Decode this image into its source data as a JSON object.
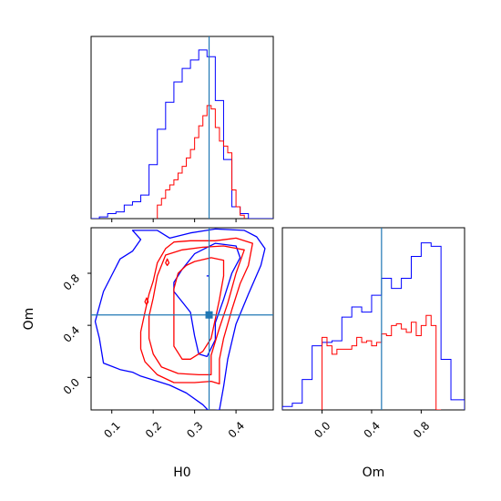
{
  "chart_data": {
    "type": "corner",
    "parameters": [
      "H0",
      "Om"
    ],
    "truth": {
      "H0": 0.335,
      "Om": 0.48
    },
    "colors": {
      "blue": "#0000ff",
      "red": "#ff0000",
      "truth": "#1f77b4",
      "axis": "#000000"
    },
    "panels": [
      {
        "id": "hist-H0",
        "type": "step-histogram",
        "x_param": "H0",
        "xlim": [
          0.05,
          0.49
        ],
        "ylim": [
          0,
          1.08
        ],
        "y_ticks_shown": false,
        "x_tick_values": [
          0.1,
          0.2,
          0.3,
          0.4
        ],
        "x_tick_labels_shown": false,
        "series": [
          {
            "color": "blue",
            "bin_edges": [
              0.05,
              0.07,
              0.09,
              0.11,
              0.13,
              0.15,
              0.17,
              0.19,
              0.21,
              0.23,
              0.25,
              0.27,
              0.29,
              0.31,
              0.33,
              0.35,
              0.37,
              0.39,
              0.41,
              0.43,
              0.45,
              0.47,
              0.49
            ],
            "heights": [
              0,
              0.01,
              0.03,
              0.04,
              0.08,
              0.1,
              0.14,
              0.32,
              0.53,
              0.69,
              0.81,
              0.89,
              0.94,
              1.0,
              0.96,
              0.7,
              0.35,
              0.07,
              0.03,
              0.0,
              0,
              0
            ]
          },
          {
            "color": "red",
            "bin_edges": [
              0.21,
              0.22,
              0.23,
              0.24,
              0.25,
              0.26,
              0.27,
              0.28,
              0.29,
              0.3,
              0.31,
              0.32,
              0.33,
              0.34,
              0.35,
              0.36,
              0.37,
              0.38,
              0.39,
              0.4,
              0.41,
              0.42
            ],
            "heights": [
              0.08,
              0.12,
              0.17,
              0.2,
              0.23,
              0.27,
              0.31,
              0.36,
              0.41,
              0.48,
              0.55,
              0.61,
              0.67,
              0.65,
              0.54,
              0.46,
              0.43,
              0.39,
              0.17,
              0.07,
              0.02
            ]
          }
        ]
      },
      {
        "id": "contour-H0-Om",
        "type": "contour",
        "x_param": "H0",
        "y_param": "Om",
        "xlim": [
          0.05,
          0.49
        ],
        "ylim": [
          -0.25,
          1.15
        ],
        "x_tick_values": [
          0.1,
          0.2,
          0.3,
          0.4
        ],
        "x_tick_labels": [
          "0.1",
          "0.2",
          "0.3",
          "0.4"
        ],
        "y_tick_values": [
          0.0,
          0.4,
          0.8
        ],
        "y_tick_labels": [
          "0.0",
          "0.4",
          "0.8"
        ],
        "xlabel": "H0",
        "ylabel": "Om",
        "series": [
          {
            "color": "blue",
            "contours": [
              [
                [
                  0.15,
                  1.13
                ],
                [
                  0.17,
                  1.06
                ],
                [
                  0.15,
                  0.97
                ],
                [
                  0.12,
                  0.91
                ],
                [
                  0.08,
                  0.66
                ],
                [
                  0.06,
                  0.43
                ],
                [
                  0.07,
                  0.3
                ],
                [
                  0.08,
                  0.11
                ],
                [
                  0.12,
                  0.06
                ],
                [
                  0.15,
                  0.04
                ],
                [
                  0.17,
                  0.01
                ],
                [
                  0.2,
                  -0.02
                ],
                [
                  0.24,
                  -0.06
                ],
                [
                  0.28,
                  -0.12
                ],
                [
                  0.32,
                  -0.21
                ],
                [
                  0.335,
                  -0.26
                ],
                [
                  0.36,
                  -0.25
                ],
                [
                  0.37,
                  -0.07
                ],
                [
                  0.38,
                  0.14
                ],
                [
                  0.4,
                  0.41
                ],
                [
                  0.43,
                  0.64
                ],
                [
                  0.46,
                  0.86
                ],
                [
                  0.47,
                  0.99
                ],
                [
                  0.45,
                  1.08
                ],
                [
                  0.42,
                  1.13
                ],
                [
                  0.35,
                  1.14
                ],
                [
                  0.29,
                  1.11
                ],
                [
                  0.24,
                  1.07
                ],
                [
                  0.21,
                  1.13
                ]
              ],
              [
                [
                  0.27,
                  0.83
                ],
                [
                  0.3,
                  0.95
                ],
                [
                  0.35,
                  1.03
                ],
                [
                  0.4,
                  1.01
                ],
                [
                  0.41,
                  0.92
                ],
                [
                  0.39,
                  0.8
                ],
                [
                  0.37,
                  0.6
                ],
                [
                  0.35,
                  0.42
                ],
                [
                  0.35,
                  0.29
                ],
                [
                  0.33,
                  0.16
                ],
                [
                  0.31,
                  0.18
                ],
                [
                  0.3,
                  0.32
                ],
                [
                  0.29,
                  0.5
                ],
                [
                  0.27,
                  0.58
                ],
                [
                  0.25,
                  0.66
                ],
                [
                  0.25,
                  0.73
                ]
              ],
              [
                [
                  0.329,
                  0.78
                ],
                [
                  0.334,
                  0.78
                ]
              ]
            ]
          },
          {
            "color": "red",
            "contours": [
              [
                [
                  0.23,
                  0.99
                ],
                [
                  0.25,
                  1.04
                ],
                [
                  0.29,
                  1.05
                ],
                [
                  0.35,
                  1.05
                ],
                [
                  0.4,
                  1.07
                ],
                [
                  0.44,
                  1.03
                ],
                [
                  0.43,
                  0.86
                ],
                [
                  0.41,
                  0.72
                ],
                [
                  0.39,
                  0.52
                ],
                [
                  0.37,
                  0.3
                ],
                [
                  0.36,
                  0.14
                ],
                [
                  0.36,
                  -0.05
                ],
                [
                  0.34,
                  -0.03
                ],
                [
                  0.3,
                  -0.04
                ],
                [
                  0.25,
                  -0.04
                ],
                [
                  0.21,
                  0.02
                ],
                [
                  0.18,
                  0.12
                ],
                [
                  0.17,
                  0.22
                ],
                [
                  0.17,
                  0.35
                ],
                [
                  0.18,
                  0.5
                ],
                [
                  0.19,
                  0.64
                ],
                [
                  0.2,
                  0.74
                ],
                [
                  0.21,
                  0.88
                ]
              ],
              [
                [
                  0.23,
                  0.94
                ],
                [
                  0.27,
                  0.98
                ],
                [
                  0.32,
                  1.0
                ],
                [
                  0.37,
                  1.01
                ],
                [
                  0.42,
                  0.98
                ],
                [
                  0.4,
                  0.8
                ],
                [
                  0.38,
                  0.57
                ],
                [
                  0.36,
                  0.38
                ],
                [
                  0.34,
                  0.17
                ],
                [
                  0.34,
                  0.02
                ],
                [
                  0.31,
                  0.02
                ],
                [
                  0.26,
                  0.03
                ],
                [
                  0.22,
                  0.08
                ],
                [
                  0.2,
                  0.18
                ],
                [
                  0.19,
                  0.3
                ],
                [
                  0.19,
                  0.47
                ],
                [
                  0.2,
                  0.61
                ],
                [
                  0.21,
                  0.78
                ]
              ],
              [
                [
                  0.26,
                  0.8
                ],
                [
                  0.28,
                  0.86
                ],
                [
                  0.3,
                  0.89
                ],
                [
                  0.34,
                  0.92
                ],
                [
                  0.37,
                  0.9
                ],
                [
                  0.37,
                  0.78
                ],
                [
                  0.36,
                  0.6
                ],
                [
                  0.35,
                  0.45
                ],
                [
                  0.34,
                  0.3
                ],
                [
                  0.32,
                  0.2
                ],
                [
                  0.29,
                  0.14
                ],
                [
                  0.27,
                  0.14
                ],
                [
                  0.25,
                  0.24
                ],
                [
                  0.25,
                  0.39
                ],
                [
                  0.25,
                  0.55
                ],
                [
                  0.25,
                  0.68
                ]
              ],
              [
                [
                  0.23,
                  0.88
                ],
                [
                  0.234,
                  0.91
                ],
                [
                  0.238,
                  0.88
                ],
                [
                  0.234,
                  0.86
                ]
              ],
              [
                [
                  0.18,
                  0.58
                ],
                [
                  0.184,
                  0.61
                ],
                [
                  0.188,
                  0.58
                ],
                [
                  0.184,
                  0.56
                ]
              ]
            ]
          }
        ]
      },
      {
        "id": "hist-Om",
        "type": "step-histogram",
        "x_param": "Om",
        "xlim": [
          -0.32,
          1.15
        ],
        "ylim": [
          0,
          1.08
        ],
        "y_ticks_shown": false,
        "x_tick_values": [
          0.0,
          0.4,
          0.8
        ],
        "x_tick_labels": [
          "0.0",
          "0.4",
          "0.8"
        ],
        "xlabel": "Om",
        "series": [
          {
            "color": "blue",
            "bin_edges": [
              -0.32,
              -0.24,
              -0.16,
              -0.08,
              0.0,
              0.08,
              0.16,
              0.24,
              0.32,
              0.4,
              0.48,
              0.56,
              0.64,
              0.72,
              0.8,
              0.88,
              0.96,
              1.04,
              1.1,
              1.15
            ],
            "heights": [
              0.02,
              0.04,
              0.18,
              0.38,
              0.4,
              0.41,
              0.55,
              0.61,
              0.58,
              0.68,
              0.78,
              0.72,
              0.78,
              0.91,
              0.99,
              0.97,
              0.3,
              0.06,
              0.06
            ]
          },
          {
            "color": "red",
            "bin_edges": [
              0.0,
              0.04,
              0.08,
              0.12,
              0.16,
              0.2,
              0.24,
              0.28,
              0.32,
              0.36,
              0.4,
              0.44,
              0.48,
              0.52,
              0.56,
              0.6,
              0.64,
              0.68,
              0.72,
              0.76,
              0.8,
              0.84,
              0.88,
              0.92,
              0.96
            ],
            "heights": [
              0.43,
              0.38,
              0.33,
              0.36,
              0.36,
              0.36,
              0.38,
              0.43,
              0.4,
              0.41,
              0.38,
              0.4,
              0.45,
              0.44,
              0.5,
              0.51,
              0.48,
              0.46,
              0.52,
              0.44,
              0.5,
              0.56,
              0.5,
              0.0
            ]
          }
        ]
      }
    ]
  }
}
